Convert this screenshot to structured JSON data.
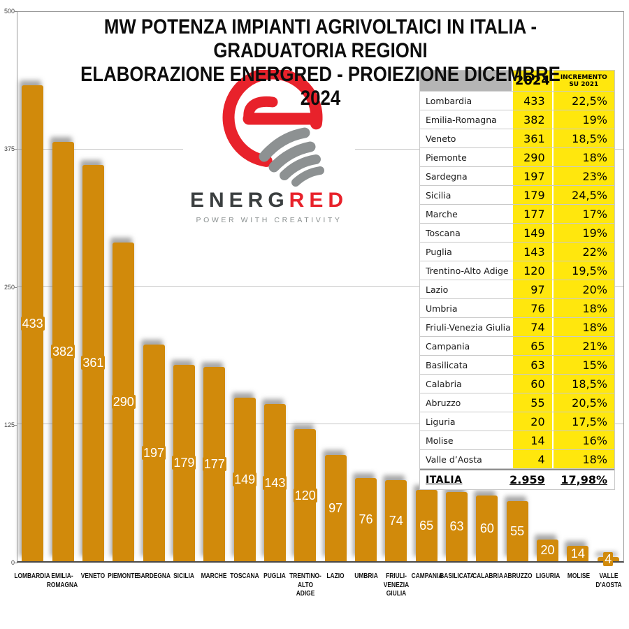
{
  "title": {
    "line1": "MW POTENZA IMPIANTI AGRIVOLTAICI IN ITALIA - GRADUATORIA REGIONI",
    "line2": "ELABORAZIONE ENERGRED - PROIEZIONE DICEMBRE 2024"
  },
  "logo": {
    "wordmark_dark": "ENERG",
    "wordmark_red": "RED",
    "tagline": "POWER WITH CREATIVITY",
    "red": "#E8222B",
    "gray": "#8D9192"
  },
  "table": {
    "header": {
      "col2": "2024",
      "col3": "INCREMENTO\nSU 2021"
    },
    "total": {
      "label": "ITALIA",
      "value": "2.959",
      "pct": "17,98%"
    },
    "colors": {
      "header_gray": "#B5B5B5",
      "yellow": "#FFE70D"
    }
  },
  "chart_data": {
    "type": "bar",
    "title": "MW POTENZA IMPIANTI AGRIVOLTAICI IN ITALIA - GRADUATORIA REGIONI",
    "subtitle": "ELABORAZIONE ENERGRED - PROIEZIONE DICEMBRE 2024",
    "ylabel": "MW",
    "ylim": [
      0,
      500
    ],
    "yticks": [
      500,
      375,
      250,
      125,
      0
    ],
    "grid": true,
    "bar_color": "#D18A0B",
    "regions": [
      {
        "name": "Lombardia",
        "xlabel": "LOMBARDIA",
        "value": 433,
        "pct": "22,5%"
      },
      {
        "name": "Emilia-Romagna",
        "xlabel": "EMILIA-\nROMAGNA",
        "value": 382,
        "pct": "19%"
      },
      {
        "name": "Veneto",
        "xlabel": "VENETO",
        "value": 361,
        "pct": "18,5%"
      },
      {
        "name": "Piemonte",
        "xlabel": "PIEMONTE",
        "value": 290,
        "pct": "18%"
      },
      {
        "name": "Sardegna",
        "xlabel": "SARDEGNA",
        "value": 197,
        "pct": "23%"
      },
      {
        "name": "Sicilia",
        "xlabel": "SICILIA",
        "value": 179,
        "pct": "24,5%"
      },
      {
        "name": "Marche",
        "xlabel": "MARCHE",
        "value": 177,
        "pct": "17%"
      },
      {
        "name": "Toscana",
        "xlabel": "TOSCANA",
        "value": 149,
        "pct": "19%"
      },
      {
        "name": "Puglia",
        "xlabel": "PUGLIA",
        "value": 143,
        "pct": "22%"
      },
      {
        "name": "Trentino-Alto Adige",
        "xlabel": "TRENTINO-\nALTO ADIGE",
        "value": 120,
        "pct": "19,5%"
      },
      {
        "name": "Lazio",
        "xlabel": "LAZIO",
        "value": 97,
        "pct": "20%"
      },
      {
        "name": "Umbria",
        "xlabel": "UMBRIA",
        "value": 76,
        "pct": "18%"
      },
      {
        "name": "Friuli-Venezia Giulia",
        "xlabel": "FRIULI-\nVENEZIA\nGIULIA",
        "value": 74,
        "pct": "18%"
      },
      {
        "name": "Campania",
        "xlabel": "CAMPANIA",
        "value": 65,
        "pct": "21%"
      },
      {
        "name": "Basilicata",
        "xlabel": "BASILICATA",
        "value": 63,
        "pct": "15%"
      },
      {
        "name": "Calabria",
        "xlabel": "CALABRIA",
        "value": 60,
        "pct": "18,5%"
      },
      {
        "name": "Abruzzo",
        "xlabel": "ABRUZZO",
        "value": 55,
        "pct": "20,5%"
      },
      {
        "name": "Liguria",
        "xlabel": "LIGURIA",
        "value": 20,
        "pct": "17,5%"
      },
      {
        "name": "Molise",
        "xlabel": "MOLISE",
        "value": 14,
        "pct": "16%"
      },
      {
        "name": "Valle d’Aosta",
        "xlabel": "VALLE\nD’AOSTA",
        "value": 4,
        "pct": "18%"
      }
    ]
  }
}
